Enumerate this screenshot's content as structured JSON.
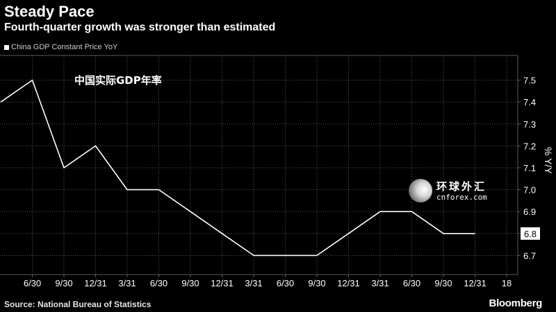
{
  "header": {
    "title": "Steady Pace",
    "subtitle": "Fourth-quarter growth was stronger than estimated"
  },
  "legend": {
    "label": "China GDP Constant Price YoY",
    "color": "#ffffff"
  },
  "annotation": {
    "text": "中国实际GDP年率"
  },
  "watermark": {
    "cn_text": "环球外汇",
    "en_text": "cnforex.com"
  },
  "footer": {
    "source": "Source: National Bureau of Statistics",
    "brand": "Bloomberg"
  },
  "colors": {
    "background": "#000000",
    "line": "#ffffff",
    "grid": "#5a5a5a",
    "text": "#ffffff"
  },
  "chart_data": {
    "type": "line",
    "title": "Steady Pace",
    "subtitle": "Fourth-quarter growth was stronger than estimated",
    "ylabel": "% Y/Y",
    "ylim": [
      6.6,
      7.6
    ],
    "yticks": [
      7.5,
      7.4,
      7.3,
      7.2,
      7.1,
      7.0,
      6.9,
      6.8,
      6.7
    ],
    "x_tick_labels": [
      "6/30",
      "9/30",
      "12/31",
      "3/31",
      "6/30",
      "9/30",
      "12/31",
      "3/31",
      "6/30",
      "9/30",
      "12/31",
      "3/31",
      "6/30",
      "9/30",
      "12/31",
      "18"
    ],
    "grid": true,
    "last_value_label": "6.8",
    "series": [
      {
        "name": "China GDP Constant Price YoY",
        "x": [
          "3/31",
          "6/30",
          "9/30",
          "12/31",
          "3/31",
          "6/30",
          "9/30",
          "12/31",
          "3/31",
          "6/30",
          "9/30",
          "12/31",
          "3/31",
          "6/30",
          "9/30",
          "12/31"
        ],
        "values": [
          7.4,
          7.5,
          7.1,
          7.2,
          7.0,
          7.0,
          6.9,
          6.8,
          6.7,
          6.7,
          6.7,
          6.8,
          6.9,
          6.9,
          6.8,
          6.8
        ]
      }
    ]
  }
}
